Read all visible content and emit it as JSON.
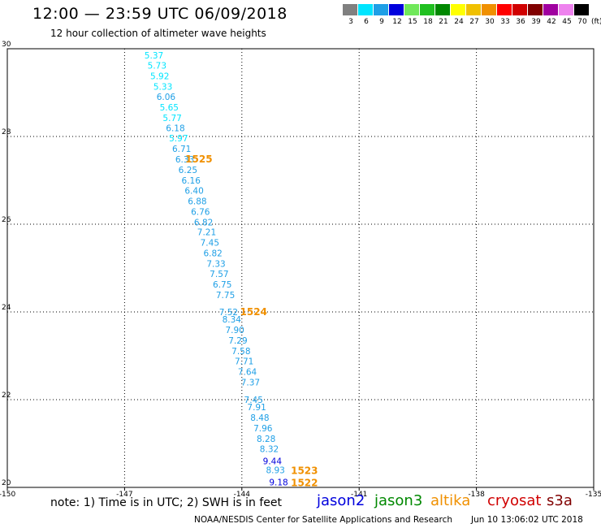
{
  "title": "12:00 — 23:59 UTC 06/09/2018",
  "subtitle": "12 hour collection of altimeter wave heights",
  "legend": {
    "labels": [
      "3",
      "6",
      "9",
      "12",
      "15",
      "18",
      "21",
      "24",
      "27",
      "30",
      "33",
      "36",
      "39",
      "42",
      "45",
      "70"
    ],
    "colors": [
      "#808080",
      "#00e5ff",
      "#1e9fe6",
      "#0000dd",
      "#70e85a",
      "#20c020",
      "#008800",
      "#ffff00",
      "#f0c000",
      "#f09000",
      "#ff0000",
      "#d00000",
      "#800000",
      "#a000a0",
      "#ee82ee",
      "#000000"
    ],
    "unit": "(ft)"
  },
  "note": "note: 1) Time is in UTC; 2) SWH is in feet",
  "satellites": [
    {
      "name": "jason2",
      "color": "#0000dd"
    },
    {
      "name": "jason3",
      "color": "#008800"
    },
    {
      "name": "altika",
      "color": "#f09000"
    },
    {
      "name": "cryosat",
      "color": "#d00000"
    },
    {
      "name": "s3a",
      "color": "#800000"
    }
  ],
  "footer": "NOAA/NESDIS Center for Satellite Applications and Research",
  "footer_time": "Jun 10 13:06:02 UTC 2018",
  "chart_data": {
    "type": "scatter",
    "xlim": [
      -150,
      -135
    ],
    "ylim": [
      20,
      30
    ],
    "x_ticks": [
      "-150",
      "-147",
      "-144",
      "-141",
      "-138",
      "-135"
    ],
    "y_ticks": [
      "20",
      "22",
      "24",
      "26",
      "28",
      "30"
    ],
    "grid": true,
    "series": [
      {
        "name": "swh",
        "points": [
          {
            "lon": -146.25,
            "lat": 29.85,
            "label": "5.37",
            "color": "#00e5ff"
          },
          {
            "lon": -146.17,
            "lat": 29.62,
            "label": "5.73",
            "color": "#00e5ff"
          },
          {
            "lon": -146.1,
            "lat": 29.38,
            "label": "5.92",
            "color": "#00e5ff"
          },
          {
            "lon": -146.02,
            "lat": 29.14,
            "label": "5.33",
            "color": "#00e5ff"
          },
          {
            "lon": -145.94,
            "lat": 28.91,
            "label": "6.06",
            "color": "#1e9fe6"
          },
          {
            "lon": -145.86,
            "lat": 28.67,
            "label": "5.65",
            "color": "#00e5ff"
          },
          {
            "lon": -145.78,
            "lat": 28.43,
            "label": "5.77",
            "color": "#00e5ff"
          },
          {
            "lon": -145.7,
            "lat": 28.19,
            "label": "6.18",
            "color": "#1e9fe6"
          },
          {
            "lon": -145.62,
            "lat": 27.96,
            "label": "5.97",
            "color": "#00e5ff"
          },
          {
            "lon": -145.54,
            "lat": 27.72,
            "label": "6.71",
            "color": "#1e9fe6"
          },
          {
            "lon": -145.46,
            "lat": 27.48,
            "label": "6.33",
            "color": "#1e9fe6"
          },
          {
            "lon": -145.38,
            "lat": 27.24,
            "label": "6.25",
            "color": "#1e9fe6"
          },
          {
            "lon": -145.3,
            "lat": 27.0,
            "label": "6.16",
            "color": "#1e9fe6"
          },
          {
            "lon": -145.22,
            "lat": 26.77,
            "label": "6.40",
            "color": "#1e9fe6"
          },
          {
            "lon": -145.14,
            "lat": 26.53,
            "label": "6.88",
            "color": "#1e9fe6"
          },
          {
            "lon": -145.06,
            "lat": 26.29,
            "label": "6.76",
            "color": "#1e9fe6"
          },
          {
            "lon": -144.98,
            "lat": 26.05,
            "label": "6.82",
            "color": "#1e9fe6"
          },
          {
            "lon": -144.9,
            "lat": 25.82,
            "label": "7.21",
            "color": "#1e9fe6"
          },
          {
            "lon": -144.82,
            "lat": 25.58,
            "label": "7.45",
            "color": "#1e9fe6"
          },
          {
            "lon": -144.74,
            "lat": 25.34,
            "label": "6.82",
            "color": "#1e9fe6"
          },
          {
            "lon": -144.66,
            "lat": 25.1,
            "label": "7.33",
            "color": "#1e9fe6"
          },
          {
            "lon": -144.58,
            "lat": 24.87,
            "label": "7.57",
            "color": "#1e9fe6"
          },
          {
            "lon": -144.5,
            "lat": 24.63,
            "label": "6.75",
            "color": "#1e9fe6"
          },
          {
            "lon": -144.42,
            "lat": 24.39,
            "label": "7.75",
            "color": "#1e9fe6"
          },
          {
            "lon": -144.34,
            "lat": 24.0,
            "label": "7.52",
            "color": "#1e9fe6"
          },
          {
            "lon": -144.26,
            "lat": 23.83,
            "label": "8.34",
            "color": "#1e9fe6"
          },
          {
            "lon": -144.18,
            "lat": 23.59,
            "label": "7.90",
            "color": "#1e9fe6"
          },
          {
            "lon": -144.1,
            "lat": 23.35,
            "label": "7.29",
            "color": "#1e9fe6"
          },
          {
            "lon": -144.02,
            "lat": 23.11,
            "label": "7.58",
            "color": "#1e9fe6"
          },
          {
            "lon": -143.94,
            "lat": 22.88,
            "label": "7.71",
            "color": "#1e9fe6"
          },
          {
            "lon": -143.86,
            "lat": 22.64,
            "label": "7.64",
            "color": "#1e9fe6"
          },
          {
            "lon": -143.78,
            "lat": 22.4,
            "label": "7.37",
            "color": "#1e9fe6"
          },
          {
            "lon": -143.7,
            "lat": 22.0,
            "label": "7.45",
            "color": "#1e9fe6"
          },
          {
            "lon": -143.62,
            "lat": 21.83,
            "label": "7.91",
            "color": "#1e9fe6"
          },
          {
            "lon": -143.54,
            "lat": 21.59,
            "label": "8.48",
            "color": "#1e9fe6"
          },
          {
            "lon": -143.46,
            "lat": 21.35,
            "label": "7.96",
            "color": "#1e9fe6"
          },
          {
            "lon": -143.38,
            "lat": 21.11,
            "label": "8.28",
            "color": "#1e9fe6"
          },
          {
            "lon": -143.3,
            "lat": 20.88,
            "label": "8.32",
            "color": "#1e9fe6"
          },
          {
            "lon": -143.22,
            "lat": 20.6,
            "label": "9.44",
            "color": "#0000dd"
          },
          {
            "lon": -143.14,
            "lat": 20.4,
            "label": "8.93",
            "color": "#1e9fe6"
          },
          {
            "lon": -143.06,
            "lat": 20.12,
            "label": "9.18",
            "color": "#0000dd"
          }
        ]
      }
    ],
    "annotations": [
      {
        "lon": -145.1,
        "lat": 27.48,
        "text": "1525",
        "color": "#f09000"
      },
      {
        "lon": -143.7,
        "lat": 24.0,
        "text": "1524",
        "color": "#f09000"
      },
      {
        "lon": -142.4,
        "lat": 20.38,
        "text": "1523",
        "color": "#f09000"
      },
      {
        "lon": -142.4,
        "lat": 20.1,
        "text": "1522",
        "color": "#f09000"
      }
    ]
  }
}
